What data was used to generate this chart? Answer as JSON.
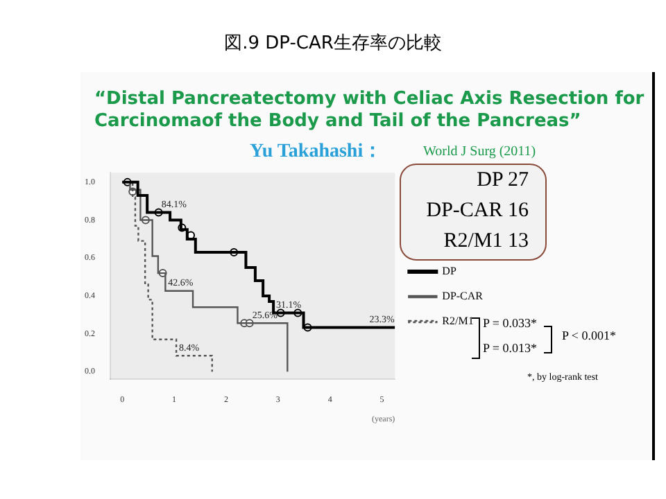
{
  "chart_data": {
    "type": "step",
    "title": "図.9 DP-CAR生存率の比較",
    "subtitle": "“Distal Pancreatectomy with Celiac Axis Resection for Carcinomaof the Body and Tail of the Pancreas”",
    "xlabel": "(years)",
    "series": [
      {
        "name": "DP",
        "color": "#000000",
        "x": [
          0,
          0.3,
          0.48,
          0.92,
          1.13,
          1.25,
          1.41,
          2.38,
          2.56,
          2.71,
          2.83,
          2.91,
          3.49,
          5.25
        ],
        "values": [
          1,
          0.93,
          0.84,
          0.8,
          0.75,
          0.7,
          0.63,
          0.55,
          0.48,
          0.4,
          0.37,
          0.31,
          0.233,
          0.233
        ]
      },
      {
        "name": "DP-CAR",
        "color": "#555555",
        "x": [
          0,
          0.15,
          0.35,
          0.58,
          0.69,
          0.83,
          1.36,
          2.22,
          3.18
        ],
        "values": [
          1,
          0.96,
          0.8,
          0.61,
          0.52,
          0.426,
          0.34,
          0.256,
          0
        ]
      },
      {
        "name": "R2/M1",
        "color": "#555555",
        "line_style": "dotted",
        "x": [
          0,
          0.2,
          0.25,
          0.31,
          0.44,
          0.5,
          0.58,
          1.04,
          1.73
        ],
        "values": [
          1,
          0.92,
          0.77,
          0.69,
          0.46,
          0.38,
          0.17,
          0.084,
          0
        ]
      },
      {
        "type": "scatter",
        "marker": "circle",
        "color": "#000000",
        "x": [
          0.1,
          0.7,
          1.15,
          1.32,
          2.15,
          3.05,
          3.38,
          3.57
        ],
        "values": [
          1,
          0.84,
          0.76,
          0.72,
          0.63,
          0.31,
          0.31,
          0.233
        ]
      },
      {
        "type": "scatter",
        "marker": "circle",
        "color": "#555555",
        "x": [
          0.45,
          0.78,
          2.35,
          2.45
        ],
        "values": [
          0.8,
          0.52,
          0.256,
          0.256
        ]
      },
      {
        "type": "scatter",
        "marker": "circle",
        "color": "#555555",
        "x": [
          0.2
        ],
        "values": [
          0.95
        ]
      }
    ],
    "xlim": [
      -0.23,
      5.25
    ],
    "xticks": [
      0,
      1,
      2,
      3,
      4,
      5
    ],
    "ylim": [
      -0.04,
      1.05
    ],
    "yticks": [
      {
        "value": 0,
        "label": "0.0"
      },
      {
        "value": 0.2,
        "label": "0.2"
      },
      {
        "value": 0.4,
        "label": "0.4"
      },
      {
        "value": 0.6,
        "label": "0.6"
      },
      {
        "value": 0.8,
        "label": "0.8"
      },
      {
        "value": 1,
        "label": "1.0"
      }
    ],
    "grid": false,
    "legend": "right",
    "annotations": [
      {
        "text": "84.1%",
        "x": 0.7,
        "y": 0.841
      },
      {
        "text": "42.6%",
        "x": 0.83,
        "y": 0.426
      },
      {
        "text": "31.1%",
        "x": 2.91,
        "y": 0.311
      },
      {
        "text": "25.6%",
        "x": 2.45,
        "y": 0.256
      },
      {
        "text": "23.3%",
        "x": 5,
        "y": 0.233
      },
      {
        "text": "8.4%",
        "x": 1.04,
        "y": 0.084
      },
      "Yu Takahashi：",
      "World J Surg (2011)",
      "DP 27",
      "DP-CAR 16",
      "R2/M1 13",
      "P = 0.033*",
      "P = 0.013*",
      "P < 0.001*",
      "*, by log-rank test"
    ]
  }
}
